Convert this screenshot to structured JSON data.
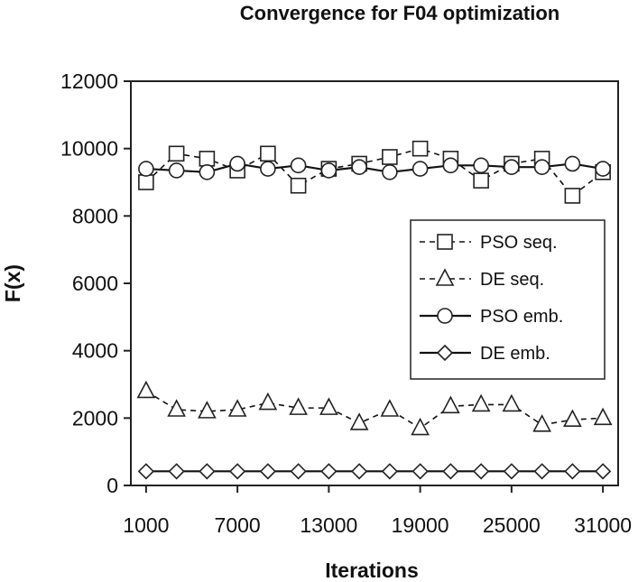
{
  "chart_data": {
    "type": "line",
    "title": "Convergence for F04 optimization",
    "xlabel": "Iterations",
    "ylabel": "F(x)",
    "xlim": [
      0,
      32000
    ],
    "ylim": [
      0,
      12000
    ],
    "xticks": [
      1000,
      7000,
      13000,
      19000,
      25000,
      31000
    ],
    "xtick_labels": [
      "1000",
      "7000",
      "13000",
      "19000",
      "25000",
      "31000"
    ],
    "yticks": [
      0,
      2000,
      4000,
      6000,
      8000,
      10000,
      12000
    ],
    "ytick_labels": [
      "0",
      "2000",
      "4000",
      "6000",
      "8000",
      "10000",
      "12000"
    ],
    "grid": false,
    "legend_position": "right-middle",
    "x": [
      1000,
      3000,
      5000,
      7000,
      9000,
      11000,
      13000,
      15000,
      17000,
      19000,
      21000,
      23000,
      25000,
      27000,
      29000,
      31000
    ],
    "series": [
      {
        "name": "PSO seq.",
        "marker": "square",
        "line": "dashed",
        "values": [
          9000,
          9850,
          9700,
          9350,
          9850,
          8900,
          9400,
          9550,
          9750,
          10000,
          9700,
          9050,
          9550,
          9700,
          8600,
          9300
        ]
      },
      {
        "name": "DE seq.",
        "marker": "triangle",
        "line": "dashed",
        "values": [
          2800,
          2250,
          2200,
          2250,
          2450,
          2300,
          2300,
          1850,
          2250,
          1700,
          2350,
          2400,
          2400,
          1800,
          1950,
          2000
        ]
      },
      {
        "name": "PSO emb.",
        "marker": "circle",
        "line": "solid",
        "values": [
          9400,
          9350,
          9300,
          9550,
          9400,
          9500,
          9350,
          9450,
          9300,
          9400,
          9500,
          9500,
          9450,
          9450,
          9550,
          9400
        ]
      },
      {
        "name": "DE emb.",
        "marker": "diamond",
        "line": "solid",
        "values": [
          420,
          420,
          420,
          420,
          420,
          420,
          420,
          420,
          420,
          420,
          420,
          420,
          420,
          420,
          420,
          420
        ]
      }
    ]
  }
}
